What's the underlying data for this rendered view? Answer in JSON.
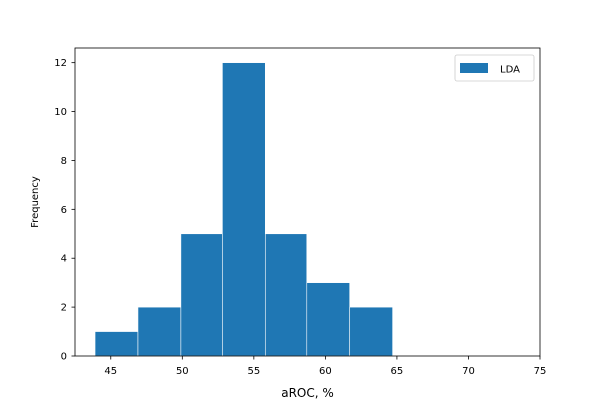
{
  "chart_data": {
    "type": "bar",
    "subtype": "histogram",
    "xlabel": "aROC, %",
    "ylabel": "Frequency",
    "xlim": [
      42.5,
      75
    ],
    "ylim": [
      0,
      12.6
    ],
    "xticks": [
      45,
      50,
      55,
      60,
      65,
      70,
      75
    ],
    "yticks": [
      0,
      2,
      4,
      6,
      8,
      10,
      12
    ],
    "grid": false,
    "legend": {
      "position": "top-right"
    },
    "series": [
      {
        "name": "LDA",
        "color": "#1f77b4",
        "bins": [
          {
            "start": 43.9,
            "end": 46.9,
            "count": 1
          },
          {
            "start": 46.9,
            "end": 49.9,
            "count": 2
          },
          {
            "start": 49.9,
            "end": 52.8,
            "count": 5
          },
          {
            "start": 52.8,
            "end": 55.8,
            "count": 12
          },
          {
            "start": 55.8,
            "end": 58.7,
            "count": 5
          },
          {
            "start": 58.7,
            "end": 61.7,
            "count": 3
          },
          {
            "start": 61.7,
            "end": 64.7,
            "count": 2
          },
          {
            "start": 64.7,
            "end": 67.6,
            "count": 0
          },
          {
            "start": 67.6,
            "end": 70.6,
            "count": 0
          },
          {
            "start": 70.6,
            "end": 73.5,
            "count": 0
          }
        ]
      }
    ]
  }
}
